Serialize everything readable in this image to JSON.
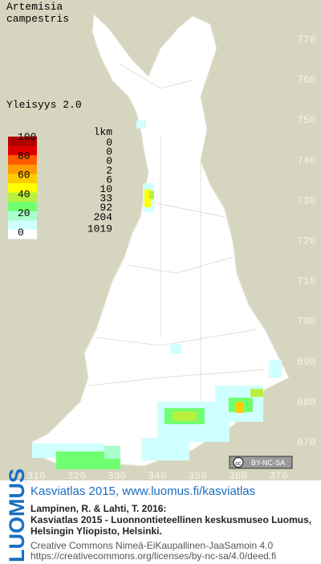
{
  "header": {
    "species_lines": [
      "Artemisia",
      "campestris"
    ],
    "frequency": "Yleisyys 2.0"
  },
  "legend": {
    "scale_labels": [
      100,
      80,
      60,
      40,
      20,
      0
    ],
    "count_header": "lkm",
    "counts": [
      0,
      0,
      0,
      2,
      6,
      10,
      33,
      92,
      204,
      1019
    ],
    "colors": [
      "#b00000",
      "#e00000",
      "#ff5a00",
      "#ff9a00",
      "#ffcc00",
      "#ffff00",
      "#b8f040",
      "#70ff70",
      "#a8ffcc",
      "#d0ffff"
    ]
  },
  "map": {
    "y_labels": [
      770,
      760,
      750,
      740,
      730,
      720,
      710,
      700,
      690,
      680,
      670
    ],
    "x_labels": [
      310,
      320,
      330,
      340,
      350,
      360,
      370
    ],
    "license_badge": "BY-NC-SA"
  },
  "footer": {
    "logo": "LUOMUS",
    "link": "Kasviatlas 2015, www.luomus.fi/kasviatlas",
    "citation": [
      "Lampinen, R. & Lahti, T. 2016:",
      "Kasviatlas 2015 - Luonnontieteellinen keskusmuseo Luomus,",
      "Helsingin Yliopisto, Helsinki."
    ],
    "license": [
      "Creative Commons Nimeä-EiKaupallinen-JaaSamoin 4.0",
      "https://creativecommons.org/licenses/by-nc-sa/4.0/deed.fi"
    ]
  }
}
